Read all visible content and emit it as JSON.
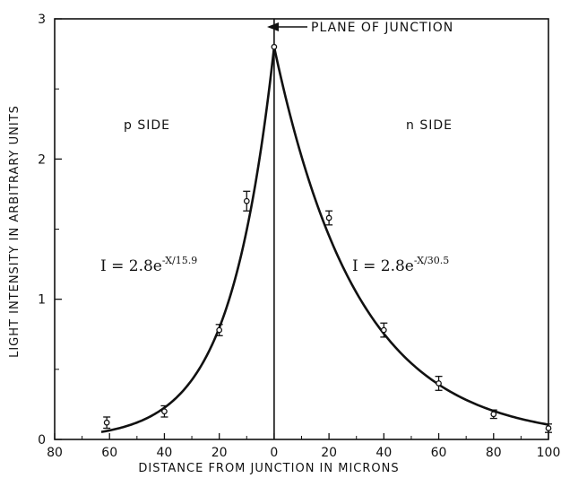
{
  "chart_data": {
    "type": "scatter",
    "xlabel": "DISTANCE FROM JUNCTION IN MICRONS",
    "ylabel": "LIGHT INTENSITY IN ARBITRARY UNITS",
    "x_ticks": [
      {
        "value": -80,
        "label": "80"
      },
      {
        "value": -60,
        "label": "60"
      },
      {
        "value": -40,
        "label": "40"
      },
      {
        "value": -20,
        "label": "20"
      },
      {
        "value": 0,
        "label": "0"
      },
      {
        "value": 20,
        "label": "20"
      },
      {
        "value": 40,
        "label": "40"
      },
      {
        "value": 60,
        "label": "60"
      },
      {
        "value": 80,
        "label": "80"
      },
      {
        "value": 100,
        "label": "100"
      }
    ],
    "y_ticks": [
      {
        "value": 0,
        "label": "0"
      },
      {
        "value": 1,
        "label": "1"
      },
      {
        "value": 2,
        "label": "2"
      },
      {
        "value": 3,
        "label": "3"
      }
    ],
    "xlim": [
      -80,
      100
    ],
    "ylim": [
      0,
      3
    ],
    "grid": false,
    "junction_label": "PLANE OF JUNCTION",
    "p_side_label": "p SIDE",
    "n_side_label": "n SIDE",
    "p_equation": {
      "base": "I = 2.8e",
      "exponent": "-X/15.9"
    },
    "n_equation": {
      "base": "I = 2.8e",
      "exponent": "-X/30.5"
    },
    "points": [
      {
        "x": -61,
        "y": 0.12,
        "err": 0.04
      },
      {
        "x": -40,
        "y": 0.2,
        "err": 0.04
      },
      {
        "x": -20,
        "y": 0.78,
        "err": 0.04
      },
      {
        "x": -10,
        "y": 1.7,
        "err": 0.07
      },
      {
        "x": 0,
        "y": 2.8,
        "err": 0
      },
      {
        "x": 20,
        "y": 1.58,
        "err": 0.05
      },
      {
        "x": 40,
        "y": 0.78,
        "err": 0.05
      },
      {
        "x": 60,
        "y": 0.4,
        "err": 0.05
      },
      {
        "x": 80,
        "y": 0.18,
        "err": 0.03
      },
      {
        "x": 100,
        "y": 0.08,
        "err": 0.03
      }
    ],
    "fits": [
      {
        "side": "p",
        "amplitude": 2.8,
        "decay_length": 15.9,
        "x_range": [
          -63,
          0
        ]
      },
      {
        "side": "n",
        "amplitude": 2.8,
        "decay_length": 30.5,
        "x_range": [
          0,
          100
        ]
      }
    ]
  }
}
